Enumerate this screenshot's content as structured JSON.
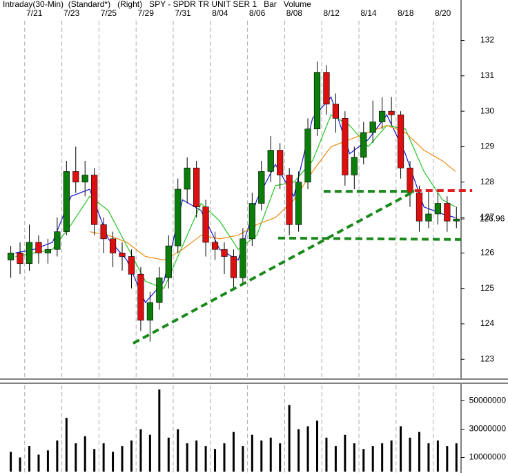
{
  "chart_data": [
    {
      "type": "candlestick",
      "title": "Intraday(30-Min)  (Standard*)   (Right)   SPY - SPDR TR UNIT SER 1   Bar   Volume",
      "x": [
        0.25,
        0.75,
        1.25,
        1.75,
        2.25,
        2.75,
        3.25,
        3.75,
        4.25,
        4.75,
        5.25,
        5.75,
        6.25,
        6.75,
        7.25,
        7.75,
        8.25,
        8.75,
        9.25,
        9.75,
        10.25,
        10.75,
        11.25,
        11.75,
        12.25,
        12.75,
        13.25,
        13.75,
        14.25,
        14.75,
        15.25,
        15.75,
        16.25,
        16.75,
        17.25,
        17.75,
        18.25,
        18.75,
        19.25,
        19.75,
        20.25,
        20.75,
        21.25,
        21.75,
        22.25,
        22.75,
        23.25,
        23.75,
        24.25
      ],
      "open": [
        125.8,
        126.0,
        125.7,
        126.3,
        126.0,
        126.1,
        126.6,
        128.3,
        128.0,
        128.2,
        126.8,
        126.4,
        126.0,
        125.9,
        125.4,
        124.1,
        124.6,
        125.3,
        126.2,
        127.8,
        128.4,
        127.3,
        126.3,
        126.1,
        125.9,
        125.3,
        126.4,
        127.4,
        128.3,
        128.9,
        128.2,
        126.8,
        128.0,
        129.5,
        131.1,
        130.2,
        129.8,
        128.2,
        128.7,
        129.4,
        129.7,
        130.0,
        129.9,
        128.4,
        127.7,
        126.9,
        127.1,
        127.4,
        126.9
      ],
      "high": [
        126.2,
        126.3,
        126.8,
        126.5,
        126.4,
        127.0,
        128.6,
        129.0,
        128.6,
        128.4,
        127.0,
        126.6,
        126.3,
        126.1,
        125.6,
        124.9,
        125.6,
        126.5,
        128.1,
        128.7,
        128.6,
        127.5,
        126.6,
        126.3,
        126.1,
        126.7,
        127.7,
        128.6,
        129.3,
        129.1,
        128.4,
        128.3,
        129.8,
        131.4,
        131.3,
        130.5,
        130.0,
        129.0,
        129.7,
        130.3,
        130.4,
        130.4,
        130.0,
        128.6,
        127.9,
        127.8,
        127.7,
        127.6,
        127.3
      ],
      "low": [
        125.3,
        125.4,
        125.5,
        125.7,
        125.7,
        125.9,
        126.5,
        127.7,
        127.6,
        126.5,
        126.0,
        125.6,
        125.5,
        125.0,
        123.8,
        123.5,
        124.4,
        125.0,
        126.0,
        127.4,
        127.0,
        125.9,
        125.8,
        125.4,
        125.0,
        125.1,
        126.2,
        127.2,
        128.0,
        127.8,
        126.5,
        126.6,
        127.8,
        129.3,
        129.9,
        129.4,
        127.9,
        127.8,
        128.5,
        129.1,
        129.5,
        129.6,
        128.1,
        127.3,
        126.6,
        126.7,
        126.8,
        126.6,
        126.7
      ],
      "close": [
        126.0,
        125.7,
        126.3,
        126.0,
        126.1,
        126.6,
        128.3,
        128.0,
        128.2,
        126.8,
        126.4,
        126.0,
        125.9,
        125.4,
        124.1,
        124.6,
        125.3,
        126.2,
        127.8,
        128.4,
        127.3,
        126.3,
        126.1,
        125.9,
        125.3,
        126.4,
        127.4,
        128.3,
        128.9,
        128.2,
        126.8,
        128.0,
        129.5,
        131.1,
        130.2,
        129.8,
        128.2,
        128.7,
        129.4,
        129.7,
        130.0,
        129.9,
        128.4,
        127.7,
        126.9,
        127.1,
        127.4,
        126.9,
        126.96
      ],
      "up_color": "#0b7d0b",
      "down_color": "#dd1010",
      "last_price": 126.96,
      "xlim": [
        -0.33,
        24.5
      ],
      "ylim": [
        122.46,
        133.14
      ],
      "yticks": [
        123,
        124,
        125,
        126,
        127,
        128,
        129,
        130,
        131,
        132
      ],
      "xticks": [
        {
          "value": 1,
          "label": "7/21"
        },
        {
          "value": 3,
          "label": "7/23"
        },
        {
          "value": 5,
          "label": "7/25"
        },
        {
          "value": 7,
          "label": "7/29"
        },
        {
          "value": 9,
          "label": "7/31"
        },
        {
          "value": 11,
          "label": "8/04"
        },
        {
          "value": 13,
          "label": "8/06"
        },
        {
          "value": 15,
          "label": "8/08"
        },
        {
          "value": 17,
          "label": "8/12"
        },
        {
          "value": 19,
          "label": "8/14"
        },
        {
          "value": 21,
          "label": "8/18"
        },
        {
          "value": 23,
          "label": "8/20"
        }
      ],
      "moving_averages": [
        {
          "color": "#1515d0",
          "x": [
            0.5,
            1.5,
            2.5,
            3.5,
            4.5,
            5.5,
            6.5,
            7.5,
            8.5,
            9.5,
            10.5,
            11.5,
            12.5,
            13.5,
            14.5,
            15.5,
            16.5,
            17.5,
            18.5,
            19.5,
            20.5,
            21.5,
            22.5,
            23.5,
            24.2
          ],
          "values": [
            126.0,
            126.1,
            126.3,
            127.6,
            127.8,
            126.4,
            125.8,
            124.6,
            125.2,
            127.5,
            127.2,
            126.1,
            125.8,
            127.5,
            128.5,
            127.6,
            129.8,
            130.4,
            128.8,
            129.2,
            129.9,
            128.8,
            127.3,
            127.1,
            127.0
          ]
        },
        {
          "color": "#22c422",
          "x": [
            0.5,
            1.5,
            2.5,
            3.5,
            4.5,
            5.5,
            6.5,
            7.5,
            8.5,
            9.5,
            10.5,
            11.5,
            12.5,
            13.5,
            14.5,
            15.5,
            16.5,
            17.5,
            18.5,
            19.5,
            20.5,
            21.5,
            22.5,
            23.5,
            24.2
          ],
          "values": [
            125.9,
            126.0,
            126.1,
            126.8,
            127.6,
            127.2,
            126.2,
            125.2,
            125.0,
            126.2,
            127.4,
            126.9,
            126.1,
            126.5,
            127.9,
            128.0,
            128.6,
            129.9,
            129.6,
            129.0,
            129.6,
            129.5,
            128.3,
            127.5,
            127.3
          ]
        },
        {
          "color": "#f08a10",
          "x": [
            0.5,
            1.5,
            2.5,
            3.5,
            4.5,
            5.5,
            6.5,
            7.5,
            8.5,
            9.5,
            10.5,
            11.5,
            12.5,
            13.5,
            14.5,
            15.5,
            16.5,
            17.5,
            18.5,
            19.5,
            20.5,
            21.5,
            22.5,
            23.5,
            24.2
          ],
          "values": [
            null,
            null,
            null,
            null,
            126.6,
            126.5,
            126.3,
            125.9,
            125.8,
            126.1,
            126.5,
            126.4,
            126.5,
            126.8,
            127.0,
            127.5,
            128.3,
            129.0,
            129.2,
            129.4,
            129.6,
            129.4,
            128.9,
            128.6,
            128.3
          ]
        }
      ],
      "trendlines": [
        {
          "color": "#1a8a1a",
          "x": [
            6.84,
            21.97
          ],
          "values": [
            123.45,
            127.74
          ]
        },
        {
          "color": "#1a8a1a",
          "x": [
            17.1,
            21.97
          ],
          "values": [
            127.74,
            127.74
          ]
        },
        {
          "color": "#1a8a1a",
          "x": [
            14.65,
            24.5
          ],
          "values": [
            126.42,
            126.38
          ]
        },
        {
          "color": "#e02020",
          "x": [
            22.0,
            25.1
          ],
          "values": [
            127.76,
            127.76
          ]
        }
      ]
    },
    {
      "type": "bar",
      "x": [
        0.25,
        0.75,
        1.25,
        1.75,
        2.25,
        2.75,
        3.25,
        3.75,
        4.25,
        4.75,
        5.25,
        5.75,
        6.25,
        6.75,
        7.25,
        7.75,
        8.25,
        8.75,
        9.25,
        9.75,
        10.25,
        10.75,
        11.25,
        11.75,
        12.25,
        12.75,
        13.25,
        13.75,
        14.25,
        14.75,
        15.25,
        15.75,
        16.25,
        16.75,
        17.25,
        17.75,
        18.25,
        18.75,
        19.25,
        19.75,
        20.25,
        20.75,
        21.25,
        21.75,
        22.25,
        22.75,
        23.25,
        23.75,
        24.25
      ],
      "values": [
        14000000,
        10000000,
        18000000,
        12000000,
        15000000,
        22000000,
        38000000,
        20000000,
        25000000,
        16000000,
        20000000,
        14000000,
        18000000,
        22000000,
        30000000,
        26000000,
        58000000,
        24000000,
        30000000,
        20000000,
        22000000,
        18000000,
        16000000,
        20000000,
        28000000,
        18000000,
        26000000,
        22000000,
        24000000,
        20000000,
        47000000,
        30000000,
        32000000,
        36000000,
        24000000,
        18000000,
        26000000,
        20000000,
        16000000,
        18000000,
        20000000,
        22000000,
        32000000,
        24000000,
        28000000,
        20000000,
        22000000,
        18000000,
        20000000
      ],
      "color": "#000000",
      "xlim": [
        -0.33,
        24.5
      ],
      "ylim": [
        0,
        60975610
      ],
      "yticks": [
        10000000,
        30000000,
        50000000
      ]
    }
  ]
}
